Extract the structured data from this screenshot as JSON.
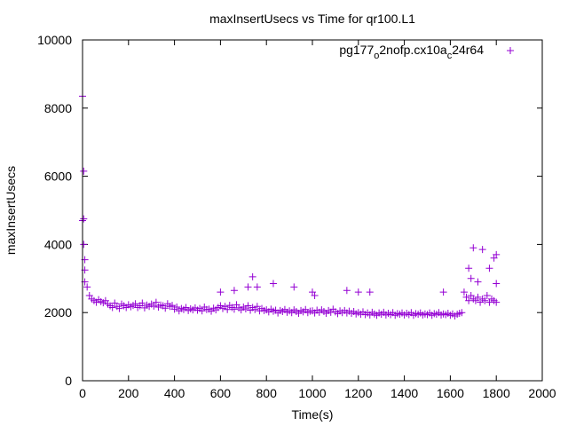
{
  "chart_data": {
    "type": "scatter",
    "title": "maxInsertUsecs vs Time for qr100.L1",
    "xlabel": "Time(s)",
    "ylabel": "maxInsertUsecs",
    "xlim": [
      0,
      2000
    ],
    "ylim": [
      0,
      10000
    ],
    "xticks": [
      "0",
      "200",
      "400",
      "600",
      "800",
      "1000",
      "1200",
      "1400",
      "1600",
      "1800",
      "2000"
    ],
    "yticks": [
      "0",
      "2000",
      "4000",
      "6000",
      "8000",
      "10000"
    ],
    "grid": false,
    "legend_position": "top-right",
    "legend": {
      "parts": [
        "pg177",
        "o",
        "2nofp.cx10a",
        "c",
        "24r64"
      ]
    },
    "series": [
      {
        "name": "pg177_o2nofp.cx10a_c24r64",
        "color": "#9400d3",
        "marker": "plus",
        "x_start": 0,
        "x_step": 10,
        "y": [
          4700,
          2900,
          2750,
          2500,
          2400,
          2350,
          2300,
          2380,
          2320,
          2290,
          2350,
          2250,
          2200,
          2150,
          2280,
          2180,
          2120,
          2250,
          2200,
          2150,
          2230,
          2170,
          2210,
          2260,
          2150,
          2200,
          2280,
          2140,
          2220,
          2180,
          2250,
          2190,
          2300,
          2160,
          2220,
          2200,
          2130,
          2260,
          2180,
          2210,
          2100,
          2160,
          2050,
          2120,
          2090,
          2150,
          2060,
          2110,
          2080,
          2140,
          2070,
          2120,
          2050,
          2160,
          2090,
          2100,
          2040,
          2130,
          2080,
          2150,
          2200,
          2120,
          2180,
          2090,
          2210,
          2150,
          2100,
          2230,
          2140,
          2080,
          2160,
          2110,
          2200,
          2070,
          2150,
          2090,
          2180,
          2050,
          2120,
          2060,
          2080,
          2020,
          2100,
          2040,
          2070,
          1990,
          2060,
          2030,
          2090,
          2010,
          2050,
          2000,
          2080,
          2030,
          1980,
          2060,
          2020,
          2090,
          2000,
          2040,
          2050,
          1990,
          2070,
          2010,
          2080,
          2030,
          1980,
          2060,
          2010,
          2100,
          2020,
          1970,
          2050,
          2000,
          2060,
          1990,
          2040,
          1980,
          2030,
          1960,
          2000,
          1950,
          2020,
          1940,
          1990,
          1930,
          2010,
          1960,
          1920,
          1990,
          1950,
          2010,
          1930,
          1980,
          1940,
          2000,
          1920,
          1970,
          1950,
          1990,
          1930,
          1980,
          1940,
          2000,
          1920,
          1970,
          1950,
          1990,
          1930,
          1960,
          1940,
          1990,
          1920,
          1970,
          1950,
          2000,
          1930,
          1960,
          1940,
          1980,
          1920,
          1960,
          1900,
          1950,
          1980,
          2000,
          2600,
          2450,
          2350,
          2500,
          2400,
          2350,
          2450,
          2300,
          2400,
          2350,
          2500,
          2300,
          2400,
          2350,
          2300
        ],
        "outliers": [
          [
            0,
            8350
          ],
          [
            5,
            6150
          ],
          [
            5,
            4750
          ],
          [
            5,
            4000
          ],
          [
            10,
            3550
          ],
          [
            10,
            3250
          ],
          [
            600,
            2600
          ],
          [
            660,
            2650
          ],
          [
            720,
            2750
          ],
          [
            740,
            3050
          ],
          [
            760,
            2750
          ],
          [
            830,
            2850
          ],
          [
            920,
            2750
          ],
          [
            1000,
            2600
          ],
          [
            1010,
            2500
          ],
          [
            1150,
            2650
          ],
          [
            1200,
            2600
          ],
          [
            1250,
            2600
          ],
          [
            1570,
            2600
          ],
          [
            1680,
            3300
          ],
          [
            1690,
            3000
          ],
          [
            1700,
            3900
          ],
          [
            1720,
            2900
          ],
          [
            1740,
            3850
          ],
          [
            1770,
            3300
          ],
          [
            1790,
            3600
          ],
          [
            1800,
            3700
          ],
          [
            1800,
            2850
          ]
        ]
      }
    ]
  }
}
